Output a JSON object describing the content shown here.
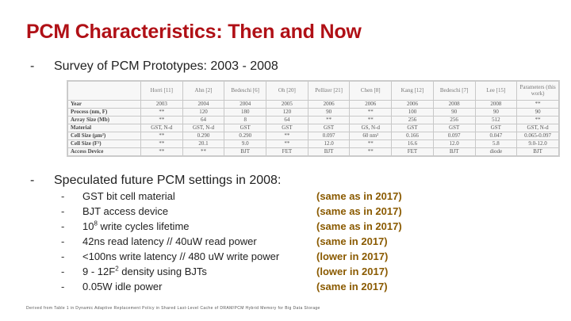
{
  "slide": {
    "title": "PCM Characteristics: Then and Now",
    "bullet1": {
      "dash": "-",
      "text": "Survey of PCM Prototypes: 2003 - 2008"
    },
    "bullet2": {
      "dash": "-",
      "text": "Speculated future PCM settings in 2008:"
    },
    "table": {
      "headers": [
        "",
        "Horri [11]",
        "Ahn [2]",
        "Bedeschi [6]",
        "Oh [20]",
        "Pellizer [21]",
        "Chen [8]",
        "Kang [12]",
        "Bedeschi [7]",
        "Lee [15]",
        "Parameters (this work)"
      ],
      "rows": [
        {
          "label": "Year",
          "cells": [
            "2003",
            "2004",
            "2004",
            "2005",
            "2006",
            "2006",
            "2006",
            "2008",
            "2008",
            "**"
          ]
        },
        {
          "label": "Process (nm, F)",
          "cells": [
            "**",
            "120",
            "180",
            "120",
            "90",
            "**",
            "100",
            "90",
            "90",
            "90"
          ]
        },
        {
          "label": "Array Size (Mb)",
          "cells": [
            "**",
            "64",
            "8",
            "64",
            "**",
            "**",
            "256",
            "256",
            "512",
            "**"
          ]
        },
        {
          "label": "Material",
          "cells": [
            "GST, N-d",
            "GST, N-d",
            "GST",
            "GST",
            "GST",
            "GS, N-d",
            "GST",
            "GST",
            "GST",
            "GST, N-d"
          ]
        },
        {
          "label": "Cell Size (μm²)",
          "cells": [
            "**",
            "0.290",
            "0.290",
            "**",
            "0.097",
            "60 nm²",
            "0.166",
            "0.097",
            "0.047",
            "0.065-0.097"
          ]
        },
        {
          "label": "Cell Size (F²)",
          "cells": [
            "**",
            "20.1",
            "9.0",
            "**",
            "12.0",
            "**",
            "16.6",
            "12.0",
            "5.8",
            "9.0-12.0"
          ]
        },
        {
          "label": "Access Device",
          "cells": [
            "**",
            "**",
            "BJT",
            "FET",
            "BJT",
            "**",
            "FET",
            "BJT",
            "diode",
            "BJT"
          ]
        }
      ]
    },
    "speculated": [
      {
        "dash": "-",
        "text": "GST bit cell material",
        "note": "(same as in 2017)"
      },
      {
        "dash": "-",
        "text": "BJT access device",
        "note": "(same as in 2017)"
      },
      {
        "dash": "-",
        "text_pre": "10",
        "sup": "8",
        "text_post": " write cycles lifetime",
        "note": "(same as in 2017)"
      },
      {
        "dash": "-",
        "text": "42ns read latency // 40uW read power",
        "note": "(same in 2017)"
      },
      {
        "dash": "-",
        "text": "<100ns write latency // 480 uW write power",
        "note": "(lower in 2017)"
      },
      {
        "dash": "-",
        "text_pre": "9 - 12F",
        "sup": "2",
        "text_post": " density using BJTs",
        "note": "(lower in 2017)"
      },
      {
        "dash": "-",
        "text": "0.05W idle power",
        "note": "(same in 2017)"
      }
    ],
    "footnote": "Derived from Table 1 in Dynamic Adaptive Replacement Policy in Shared Last-Level Cache of DRAM/PCM Hybrid Memory for Big Data Storage"
  }
}
